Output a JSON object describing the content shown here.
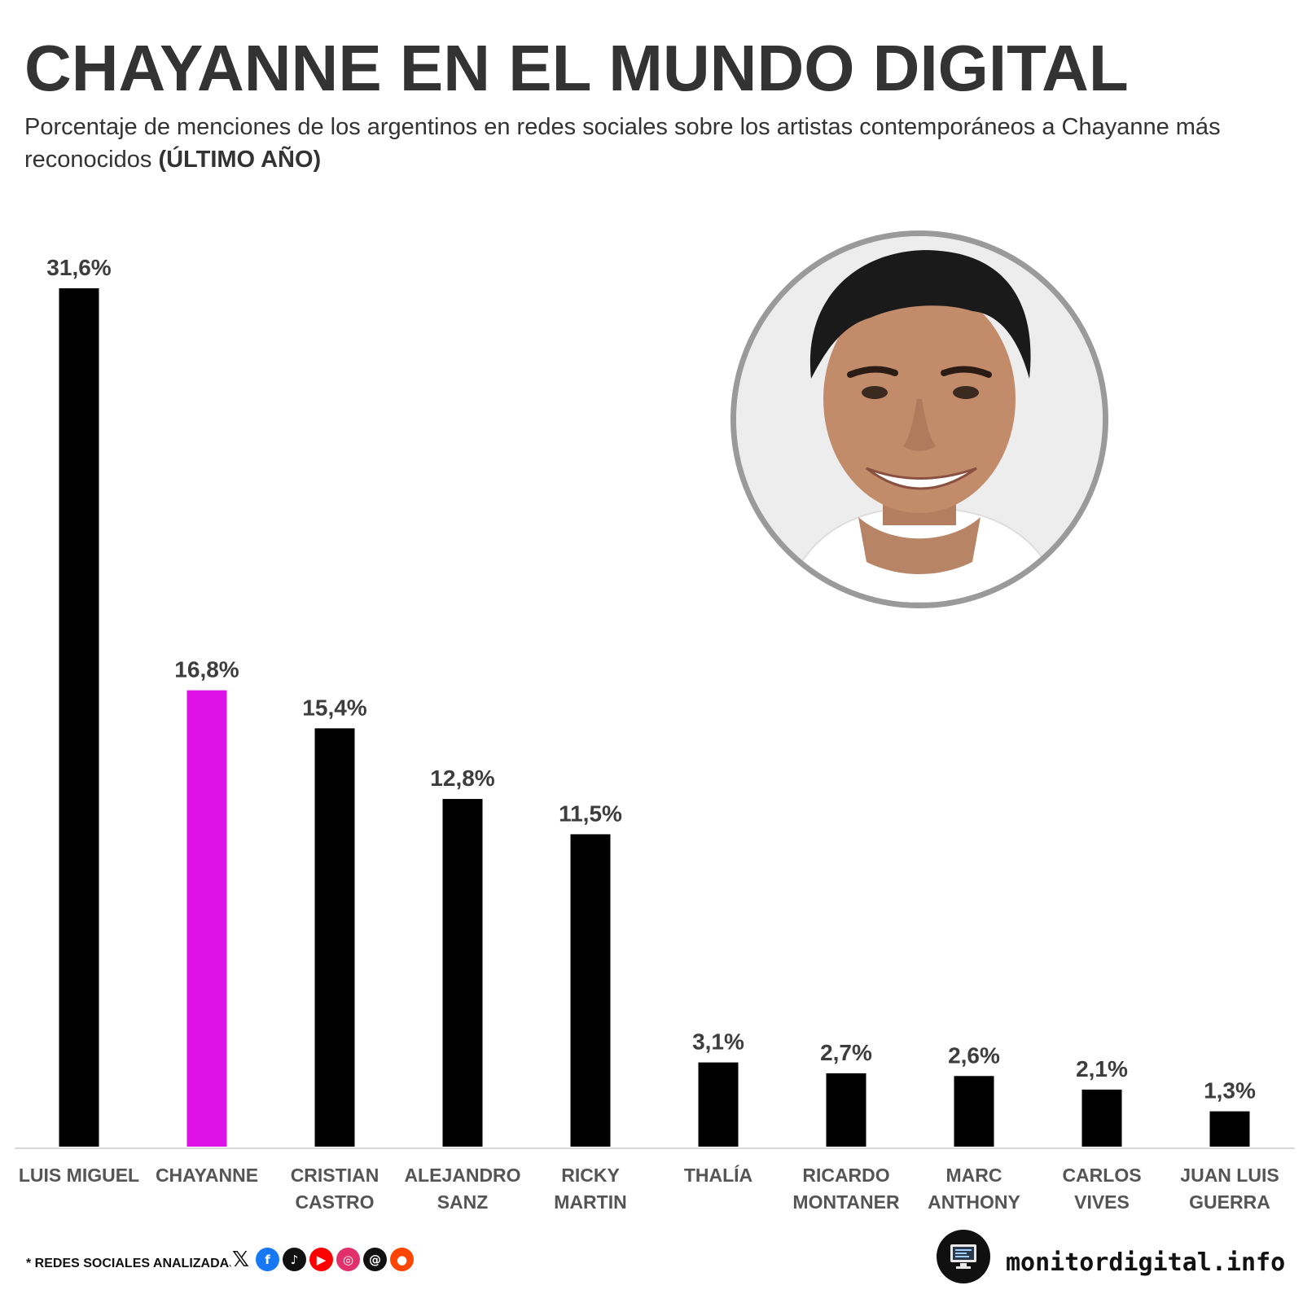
{
  "header": {
    "title": "CHAYANNE EN EL MUNDO DIGITAL",
    "subtitle_main": "Porcentaje de menciones de los argentinos en redes sociales sobre los artistas contemporáneos a Chayanne más reconocidos",
    "subtitle_emphasis": "(ÚLTIMO AÑO)"
  },
  "chart_data": {
    "type": "bar",
    "categories": [
      [
        "LUIS MIGUEL"
      ],
      [
        "CHAYANNE"
      ],
      [
        "CRISTIAN",
        "CASTRO"
      ],
      [
        "ALEJANDRO",
        "SANZ"
      ],
      [
        "RICKY",
        "MARTIN"
      ],
      [
        "THALÍA"
      ],
      [
        "RICARDO",
        "MONTANER"
      ],
      [
        "MARC",
        "ANTHONY"
      ],
      [
        "CARLOS",
        "VIVES"
      ],
      [
        "JUAN LUIS",
        "GUERRA"
      ]
    ],
    "values": [
      31.6,
      16.8,
      15.4,
      12.8,
      11.5,
      3.1,
      2.7,
      2.6,
      2.1,
      1.3
    ],
    "value_labels": [
      "31,6%",
      "16,8%",
      "15,4%",
      "12,8%",
      "11,5%",
      "3,1%",
      "2,7%",
      "2,6%",
      "2,1%",
      "1,3%"
    ],
    "bar_color": "#000000",
    "highlight_index": 1,
    "highlight_color": "#dd11e6",
    "ylim": [
      0,
      31.6
    ],
    "grid": false
  },
  "footer": {
    "note": "* REDES SOCIALES ANALIZADAS",
    "networks": [
      "x-icon",
      "facebook-icon",
      "tiktok-icon",
      "youtube-icon",
      "instagram-icon",
      "threads-icon",
      "reddit-icon"
    ],
    "brand": "monitordigital.info"
  }
}
